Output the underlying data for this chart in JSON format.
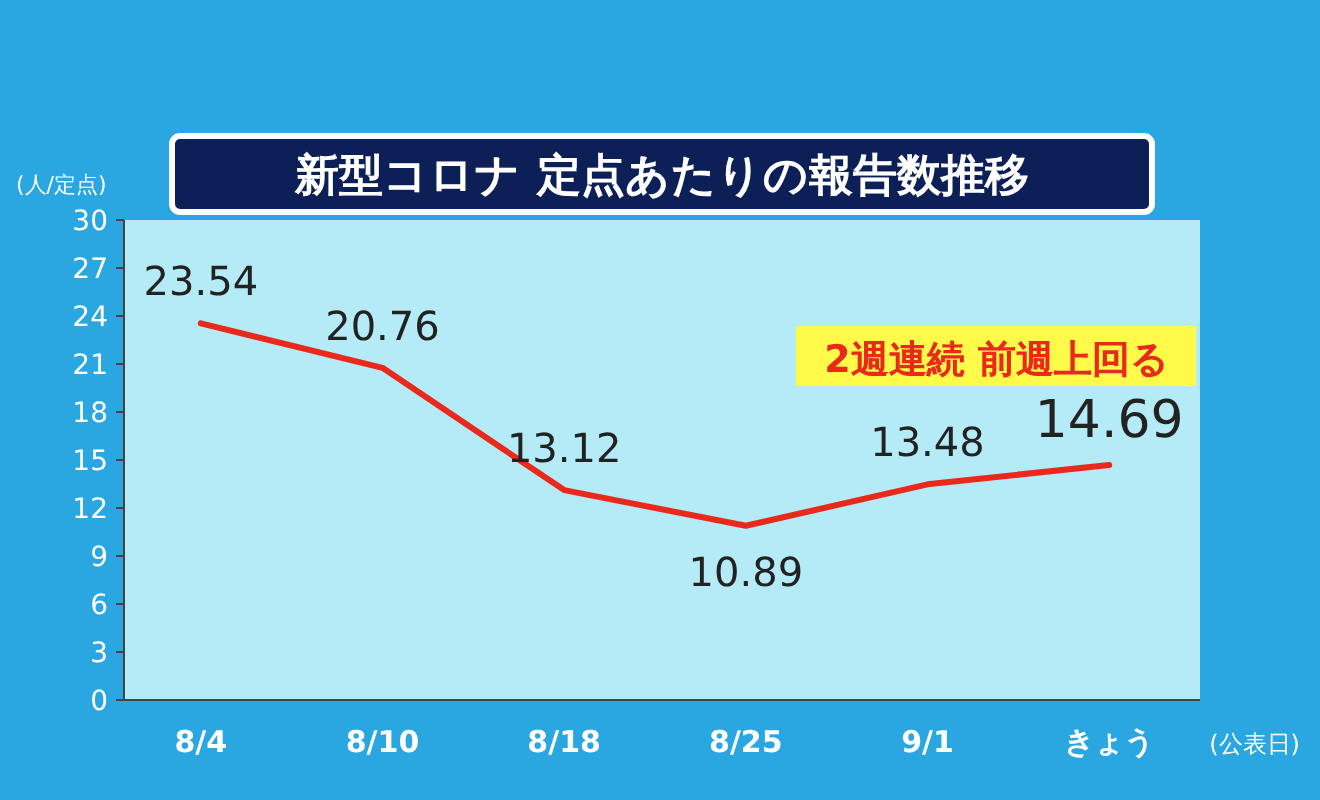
{
  "chart_data": {
    "type": "line",
    "title": "新型コロナ  定点あたりの報告数推移",
    "ylabel": "(人/定点)",
    "xlabel": "(公表日)",
    "categories": [
      "8/4",
      "8/10",
      "8/18",
      "8/25",
      "9/1",
      "きょう"
    ],
    "series": [
      {
        "color": "#e8291c",
        "values": [
          23.54,
          20.76,
          13.12,
          10.89,
          13.48,
          14.69
        ]
      }
    ],
    "ylim": [
      0,
      30
    ],
    "yticks": [
      0,
      3,
      6,
      9,
      12,
      15,
      18,
      21,
      24,
      27,
      30
    ],
    "data_labels": true,
    "marker": "none",
    "line_style": "solid",
    "grid": false,
    "annotations": [
      "2週連続  前週上回る"
    ]
  }
}
